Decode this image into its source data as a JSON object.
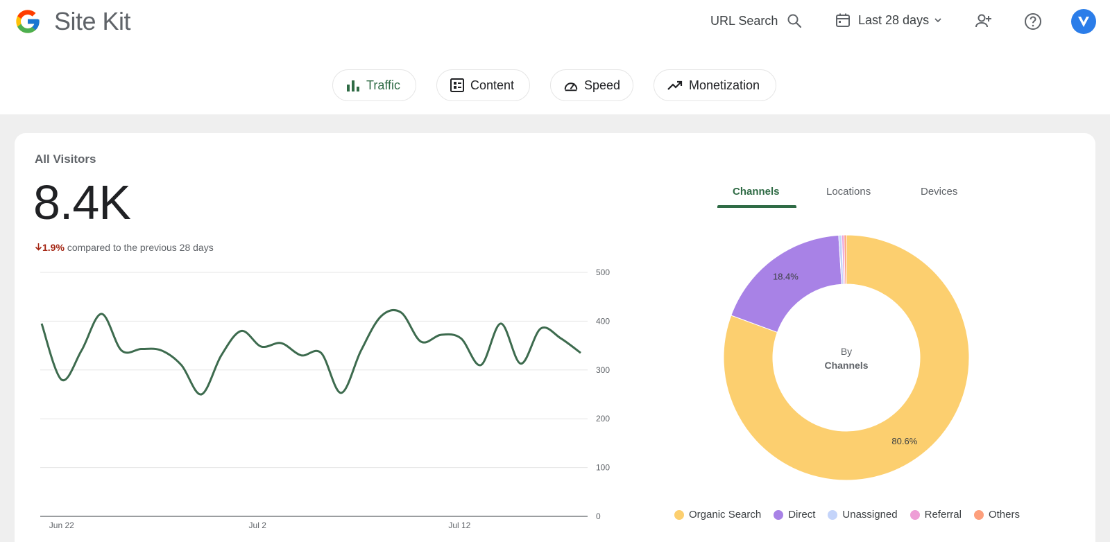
{
  "header": {
    "app_title": "Site Kit",
    "url_search_label": "URL Search",
    "date_range_label": "Last 28 days"
  },
  "nav": {
    "items": [
      {
        "label": "Traffic",
        "active": true
      },
      {
        "label": "Content",
        "active": false
      },
      {
        "label": "Speed",
        "active": false
      },
      {
        "label": "Monetization",
        "active": false
      }
    ]
  },
  "visitors": {
    "title": "All Visitors",
    "value": "8.4K",
    "change_pct": "1.9%",
    "change_text": "compared to the previous 28 days"
  },
  "tabs": [
    "Channels",
    "Locations",
    "Devices"
  ],
  "colors": {
    "line": "#3d6b4e",
    "organic": "#fccf6f",
    "direct": "#a882e6",
    "unassigned": "#c4d4fa",
    "referral": "#ee9ed6",
    "others": "#fd9f7c",
    "grid": "#e6e6e6"
  },
  "chart_data": [
    {
      "type": "line",
      "title": "All Visitors",
      "x_tick_labels": [
        "Jun 22",
        "Jul 2",
        "Jul 12"
      ],
      "y_ticks": [
        0,
        100,
        200,
        300,
        400,
        500
      ],
      "ylim": [
        0,
        500
      ],
      "values": [
        395,
        280,
        340,
        415,
        340,
        343,
        340,
        310,
        250,
        330,
        380,
        348,
        355,
        330,
        335,
        253,
        340,
        410,
        418,
        358,
        372,
        365,
        310,
        395,
        313,
        385,
        365,
        335
      ]
    },
    {
      "type": "pie",
      "center_label_line1": "By",
      "center_label_line2": "Channels",
      "slices": [
        {
          "name": "Organic Search",
          "value": 80.6,
          "label": "80.6%"
        },
        {
          "name": "Direct",
          "value": 18.4,
          "label": "18.4%"
        },
        {
          "name": "Unassigned",
          "value": 0.4,
          "label": ""
        },
        {
          "name": "Referral",
          "value": 0.3,
          "label": ""
        },
        {
          "name": "Others",
          "value": 0.3,
          "label": ""
        }
      ]
    }
  ]
}
